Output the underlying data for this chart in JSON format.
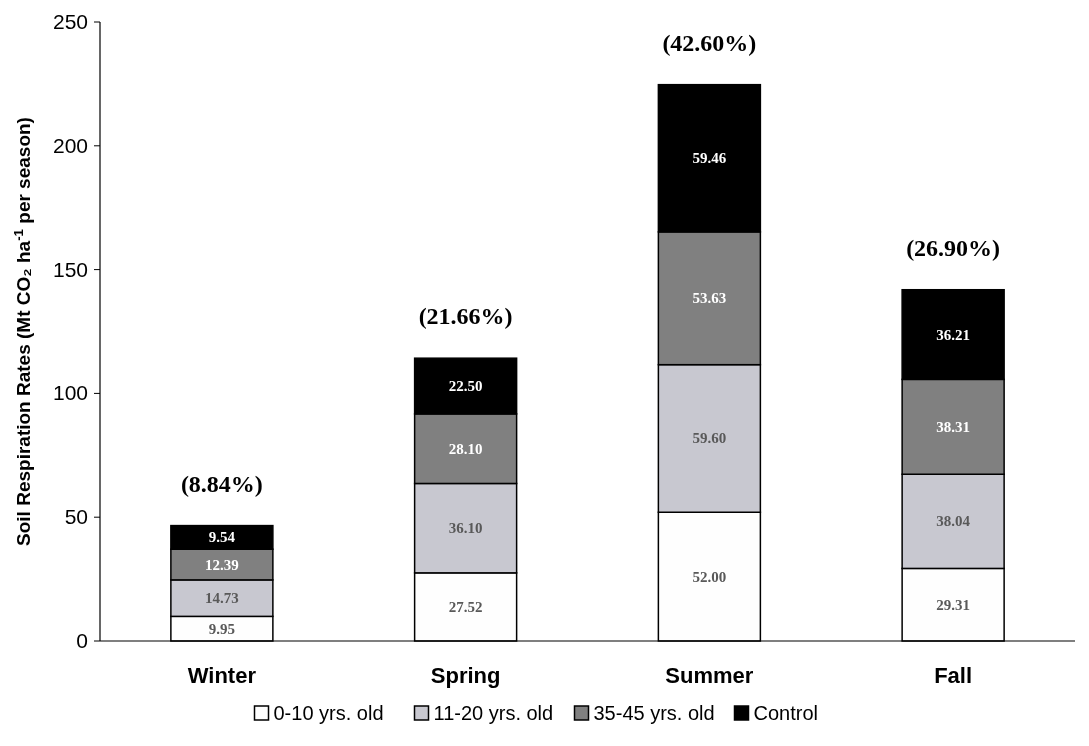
{
  "chart_data": {
    "type": "bar",
    "stacked": true,
    "ylabel": "Soil Respiration Rates (Mt CO₂ ha$^{-1}$ per season)",
    "categories": [
      "Winter",
      "Spring",
      "Summer",
      "Fall"
    ],
    "ylim": [
      0,
      250
    ],
    "yticks": [
      0,
      50,
      100,
      150,
      200,
      250
    ],
    "grid": false,
    "legend": "bottom",
    "series": [
      {
        "name": "0-10 yrs. old",
        "color": "#fefefe",
        "values": [
          9.95,
          27.52,
          52.0,
          29.31
        ],
        "value_labels": [
          "9.95",
          "27.52",
          "52.00",
          "29.31"
        ]
      },
      {
        "name": "11-20 yrs. old",
        "color": "#c8c8d0",
        "values": [
          14.73,
          36.1,
          59.6,
          38.04
        ],
        "value_labels": [
          "14.73",
          "36.10",
          "59.60",
          "38.04"
        ]
      },
      {
        "name": "35-45 yrs. old",
        "color": "#808080",
        "values": [
          12.39,
          28.1,
          53.63,
          38.31
        ],
        "value_labels": [
          "12.39",
          "28.10",
          "53.63",
          "38.31"
        ]
      },
      {
        "name": "Control",
        "color": "#000000",
        "values": [
          9.54,
          22.5,
          59.46,
          36.21
        ],
        "value_labels": [
          "9.54",
          "22.50",
          "59.46",
          "36.21"
        ]
      }
    ],
    "annotations": [
      {
        "text": "(8.84%)",
        "x": "Winter",
        "y": 46.61
      },
      {
        "text": "(21.66%)",
        "x": "Spring",
        "y": 114.22
      },
      {
        "text": "(42.60%)",
        "x": "Summer",
        "y": 224.69
      },
      {
        "text": "(26.90%)",
        "x": "Fall",
        "y": 141.87
      }
    ]
  }
}
